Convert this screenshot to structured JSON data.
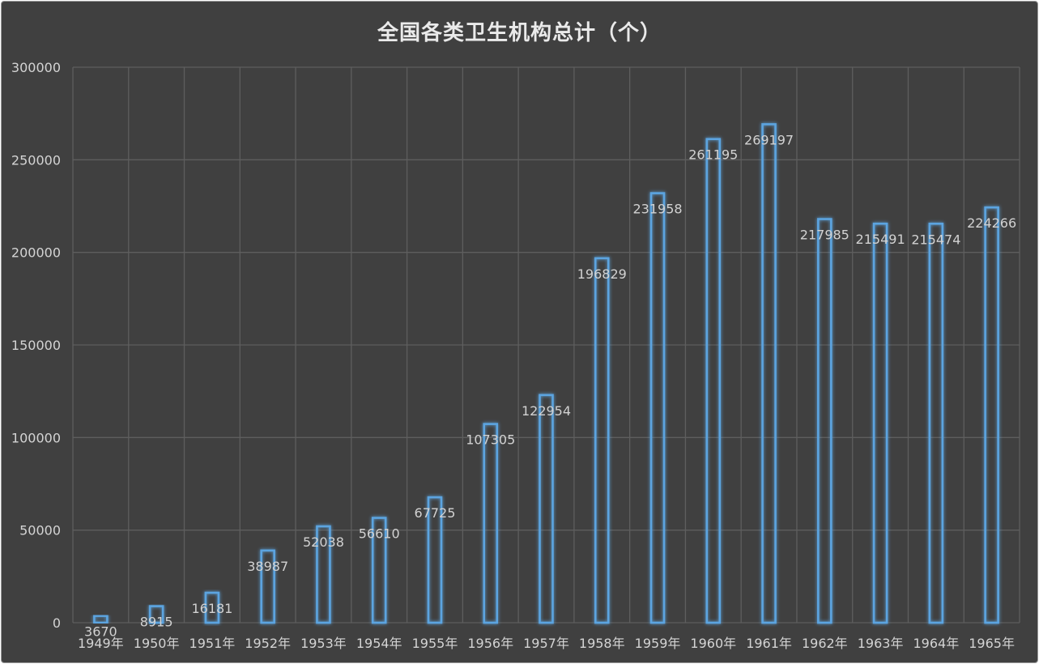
{
  "chart_data": {
    "type": "bar",
    "title": "全国各类卫生机构总计（个）",
    "xlabel": "",
    "ylabel": "",
    "categories": [
      "1949年",
      "1950年",
      "1951年",
      "1952年",
      "1953年",
      "1954年",
      "1955年",
      "1956年",
      "1957年",
      "1958年",
      "1959年",
      "1960年",
      "1961年",
      "1962年",
      "1963年",
      "1964年",
      "1965年"
    ],
    "values": [
      3670,
      8915,
      16181,
      38987,
      52038,
      56610,
      67725,
      107305,
      122954,
      196829,
      231958,
      261195,
      269197,
      217985,
      215491,
      215474,
      224266
    ],
    "data_labels": [
      "3670",
      "8915",
      "16181",
      "38987",
      "52038",
      "56610",
      "67725",
      "107305",
      "122954",
      "196829",
      "231958",
      "261195",
      "269197",
      "217985",
      "215491",
      "215474",
      "224266"
    ],
    "y_ticks": [
      "0",
      "50000",
      "100000",
      "150000",
      "200000",
      "250000",
      "300000"
    ],
    "ylim": [
      0,
      300000
    ],
    "grid": true,
    "legend": "none",
    "colors": {
      "background": "#404040",
      "bar_outline": "#5ba4e0",
      "text": "#d4d4d4",
      "grid": "#5e5e5e"
    }
  }
}
